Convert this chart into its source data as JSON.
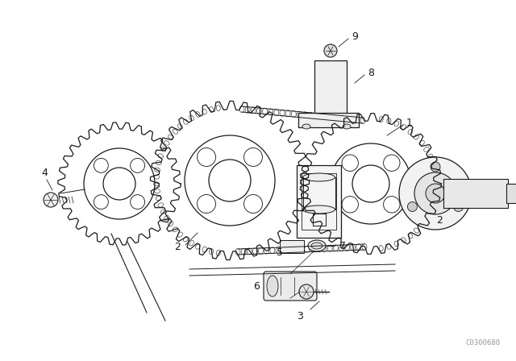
{
  "bg_color": "#ffffff",
  "line_color": "#1a1a1a",
  "fig_width": 6.4,
  "fig_height": 4.48,
  "dpi": 100,
  "watermark": "C0300680"
}
